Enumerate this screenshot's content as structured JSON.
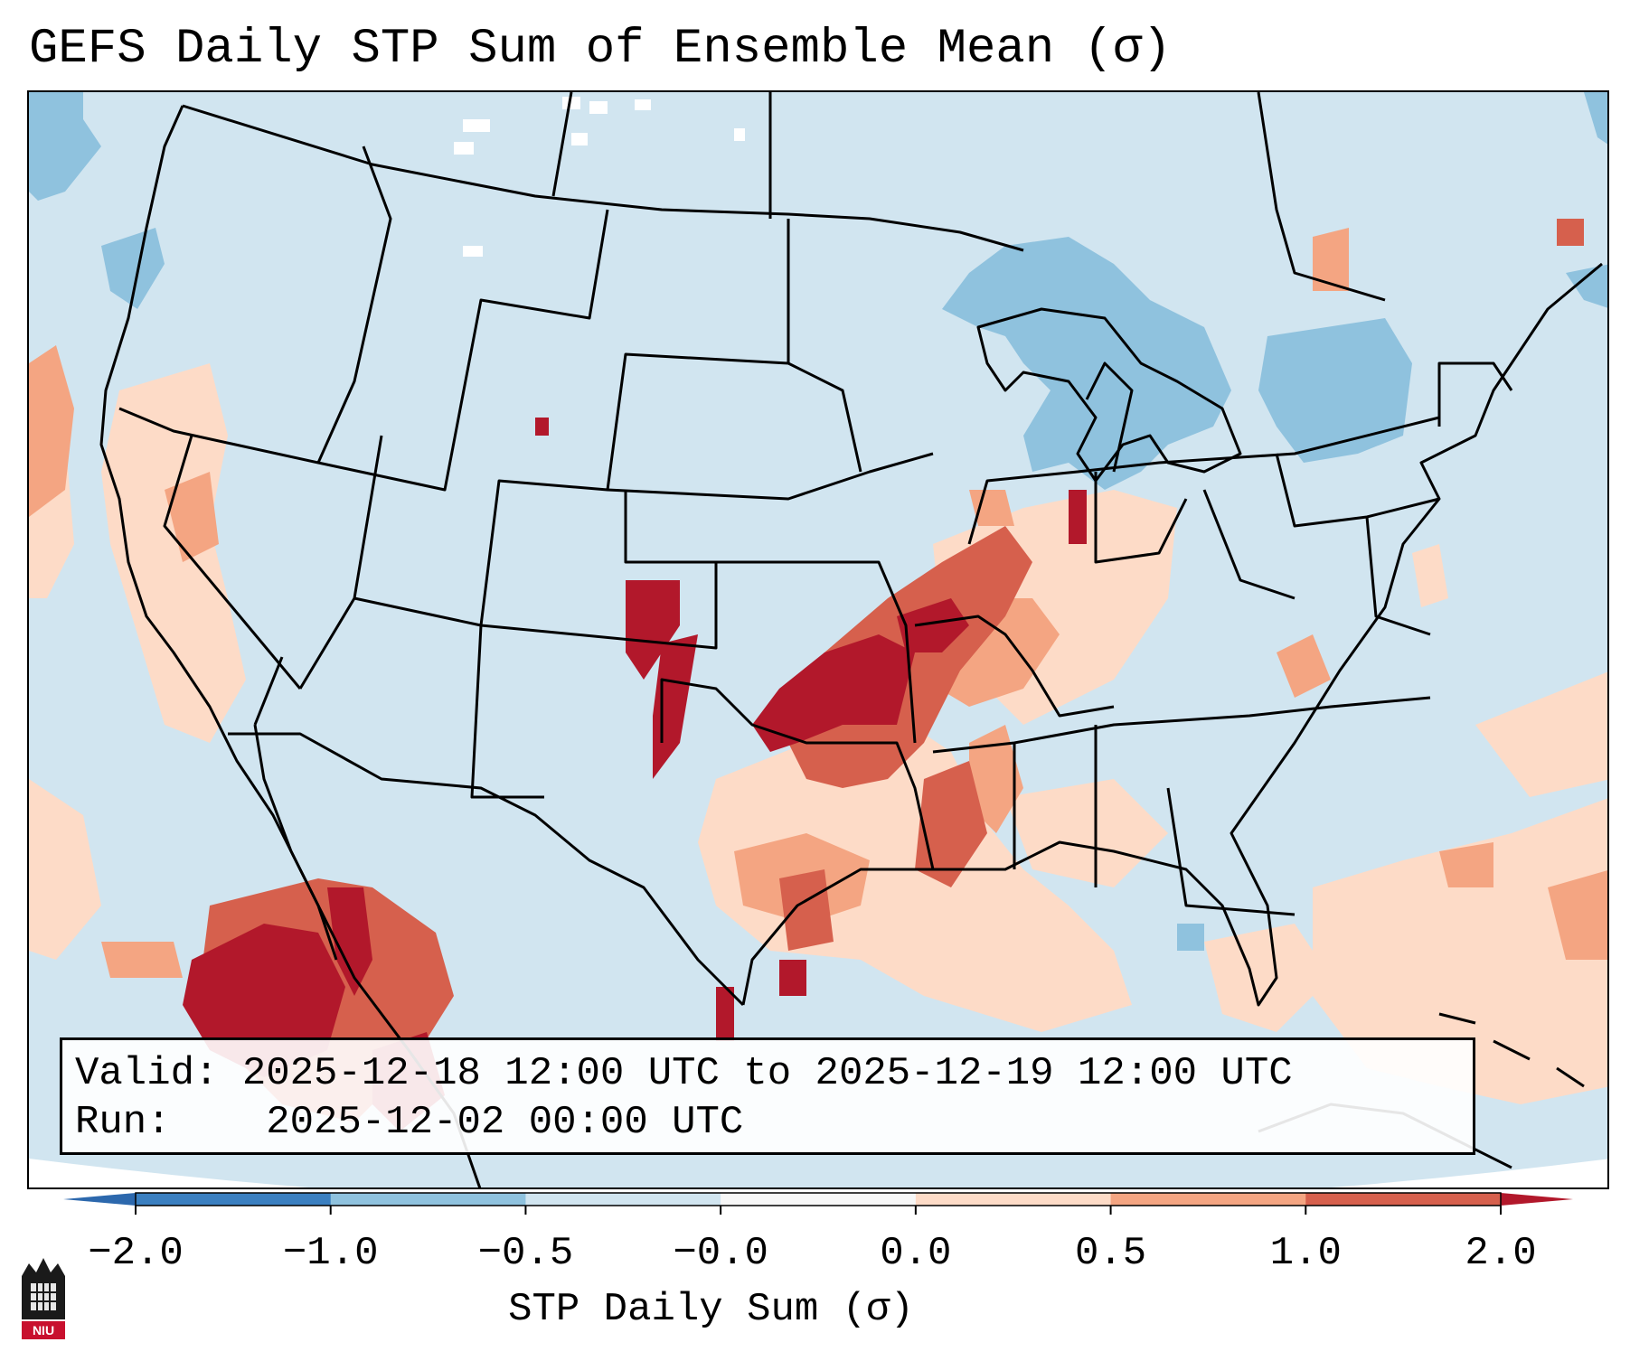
{
  "title": "GEFS Daily STP Sum of Ensemble Mean (σ)",
  "info": {
    "valid_label": "Valid:",
    "valid_value": "2025-12-18 12:00 UTC to 2025-12-19 12:00 UTC",
    "run_label": "Run:",
    "run_value": "2025-12-02 00:00 UTC"
  },
  "colorbar": {
    "label": "STP Daily Sum (σ)",
    "ticks": [
      "−2.0",
      "−1.0",
      "−0.5",
      "−0.0",
      "0.0",
      "0.5",
      "1.0",
      "2.0"
    ],
    "bin_colors": [
      "#3a7fc0",
      "#8fc2de",
      "#d1e5f0",
      "#f7f7f7",
      "#fddbc7",
      "#f4a582",
      "#d6604d"
    ],
    "extend_low_color": "#2c68ad",
    "extend_high_color": "#b2182b"
  },
  "map": {
    "background_color": "#d1e5f0",
    "regions": [
      {
        "name": "southern-plains-high",
        "level": "high"
      },
      {
        "name": "mid-mississippi-valley-moderate",
        "level": "moderate"
      },
      {
        "name": "gulf-coast-slight",
        "level": "slight"
      },
      {
        "name": "mexico-high",
        "level": "high"
      },
      {
        "name": "great-lakes-low",
        "level": "low"
      }
    ]
  },
  "logo": {
    "text": "NIU"
  }
}
